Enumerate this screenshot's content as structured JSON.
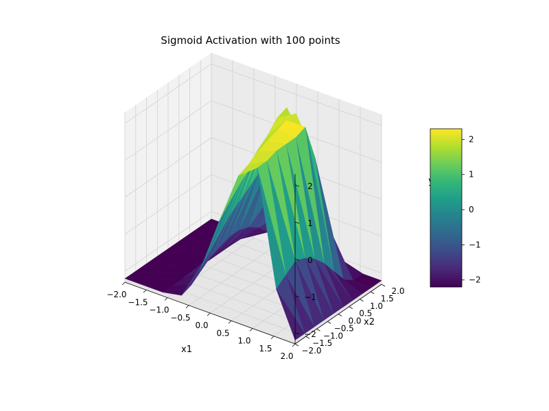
{
  "chart_data": {
    "type": "surface3d",
    "title": "Sigmoid Activation with 100 points",
    "xlabel": "x1",
    "ylabel": "x2",
    "zlabel": "y",
    "xlim": [
      -2,
      2
    ],
    "ylim": [
      -2,
      2
    ],
    "zlim": [
      -2.3,
      2.3
    ],
    "x_ticks": [
      "−2.0",
      "−1.5",
      "−1.0",
      "−0.5",
      "0.0",
      "0.5",
      "1.0",
      "1.5",
      "2.0"
    ],
    "y_ticks": [
      "−2.0",
      "−1.5",
      "−1.0",
      "−0.5",
      "0.0",
      "0.5",
      "1.0",
      "1.5",
      "2.0"
    ],
    "z_ticks": [
      "−2",
      "−1",
      "0",
      "1",
      "2"
    ],
    "colorbar_ticks": [
      "−2",
      "−1",
      "0",
      "1",
      "2"
    ],
    "colormap": "viridis",
    "grid": true,
    "surface": {
      "x": [
        -2.0,
        -1.556,
        -1.111,
        -0.667,
        -0.222,
        0.222,
        0.667,
        1.111,
        1.556,
        2.0
      ],
      "y": [
        -2.0,
        -1.556,
        -1.111,
        -0.667,
        -0.222,
        0.222,
        0.667,
        1.111,
        1.556,
        2.0
      ],
      "z": [
        [
          -2.2,
          -2.2,
          -2.2,
          -2.2,
          -2.2,
          -2.2,
          -2.2,
          -2.2,
          -2.2,
          -2.2
        ],
        [
          -2.2,
          -2.2,
          -2.2,
          -2.2,
          -2.2,
          -2.2,
          -2.2,
          -2.2,
          -2.2,
          -2.2
        ],
        [
          -2.2,
          -2.2,
          -2.2,
          -2.2,
          -2.2,
          -2.2,
          -2.2,
          -2.2,
          -2.2,
          -2.2
        ],
        [
          -2.1,
          -2.0,
          -1.8,
          -1.6,
          -1.5,
          -1.4,
          -1.4,
          -1.5,
          -1.7,
          -2.0
        ],
        [
          -1.2,
          -0.9,
          -0.6,
          -0.3,
          -0.1,
          0.1,
          0.3,
          0.3,
          -0.4,
          -1.2
        ],
        [
          0.3,
          0.6,
          0.9,
          1.2,
          1.5,
          1.7,
          2.0,
          2.1,
          1.0,
          -0.4
        ],
        [
          1.7,
          1.8,
          2.0,
          2.1,
          2.2,
          2.3,
          2.3,
          1.3,
          -0.3,
          -1.6
        ],
        [
          2.1,
          2.1,
          2.2,
          2.2,
          2.2,
          2.3,
          1.3,
          -0.5,
          -1.7,
          -2.2
        ],
        [
          -1.0,
          -0.8,
          -0.6,
          -0.7,
          -0.9,
          -1.2,
          -1.6,
          -2.0,
          -2.2,
          -2.2
        ],
        [
          -2.2,
          -2.2,
          -2.2,
          -2.2,
          -2.2,
          -2.2,
          -2.2,
          -2.2,
          -2.2,
          -2.2
        ]
      ]
    }
  }
}
